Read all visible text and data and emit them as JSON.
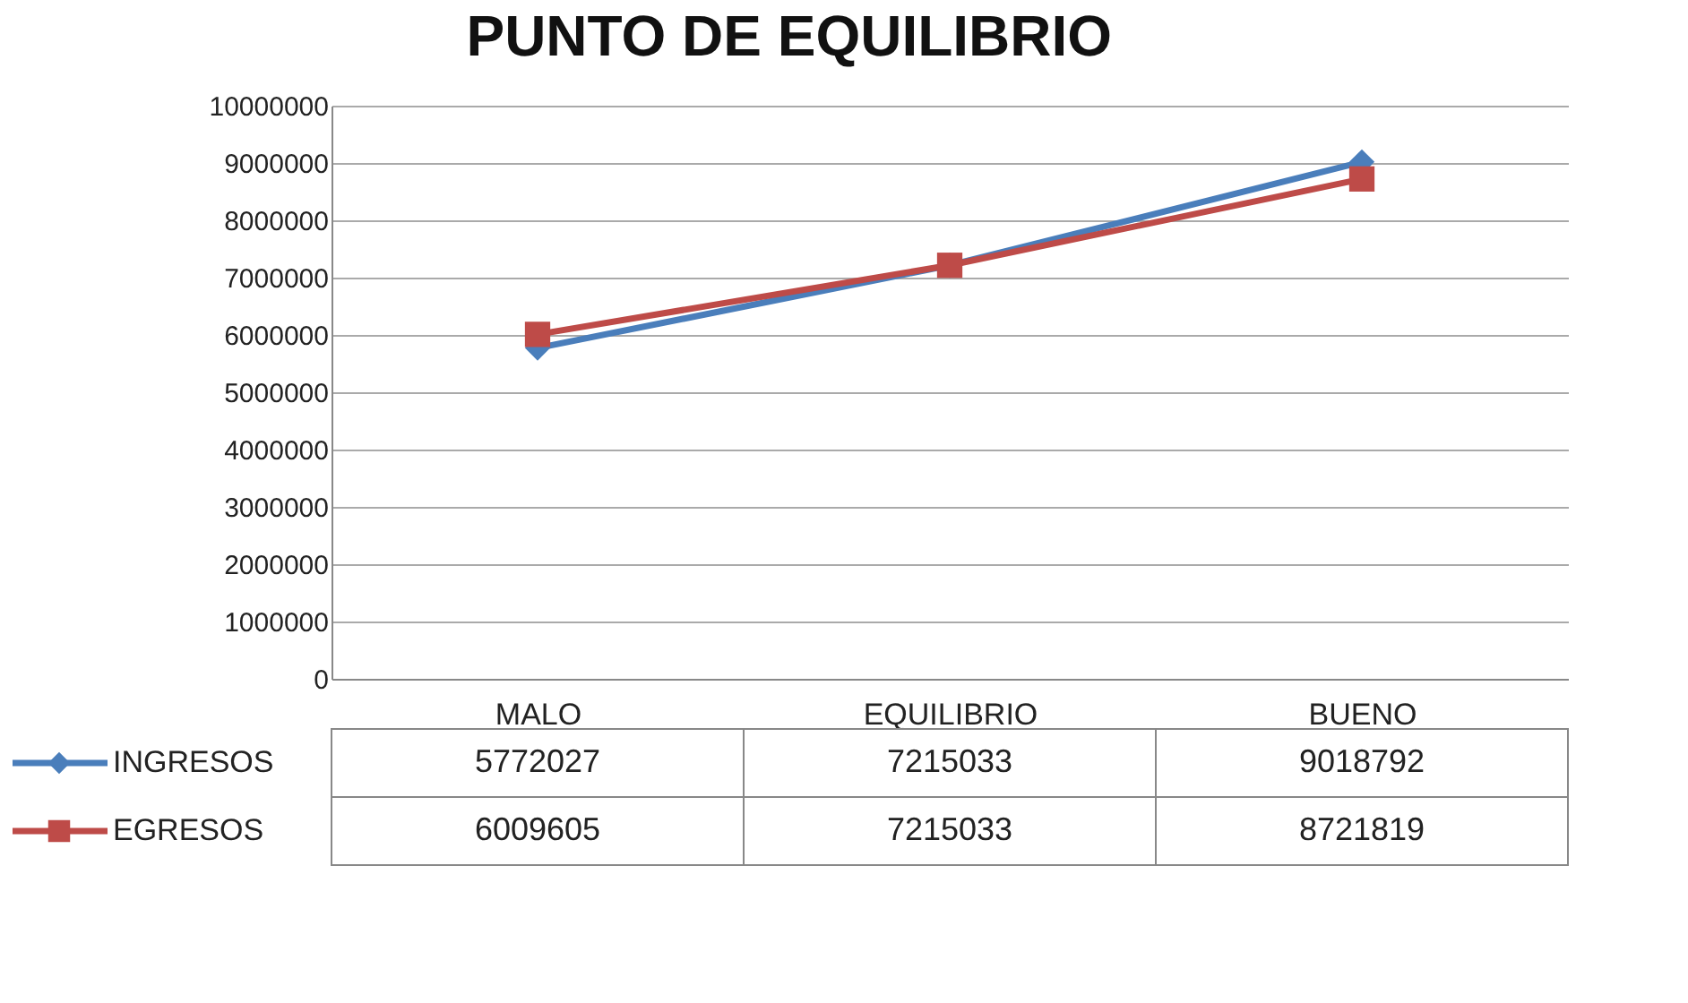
{
  "chart_data": {
    "type": "line",
    "title": "PUNTO DE EQUILIBRIO",
    "categories": [
      "MALO",
      "EQUILIBRIO",
      "BUENO"
    ],
    "series": [
      {
        "name": "INGRESOS",
        "color": "#4a7ebb",
        "marker": "diamond",
        "values": [
          5772027,
          7215033,
          9018792
        ]
      },
      {
        "name": "EGRESOS",
        "color": "#be4b48",
        "marker": "square",
        "values": [
          6009605,
          7215033,
          8721819
        ]
      }
    ],
    "ylim": [
      0,
      10000000
    ],
    "yticks": [
      0,
      1000000,
      2000000,
      3000000,
      4000000,
      5000000,
      6000000,
      7000000,
      8000000,
      9000000,
      10000000
    ],
    "grid": "y",
    "legend": "bottom left",
    "data_labels": true
  }
}
